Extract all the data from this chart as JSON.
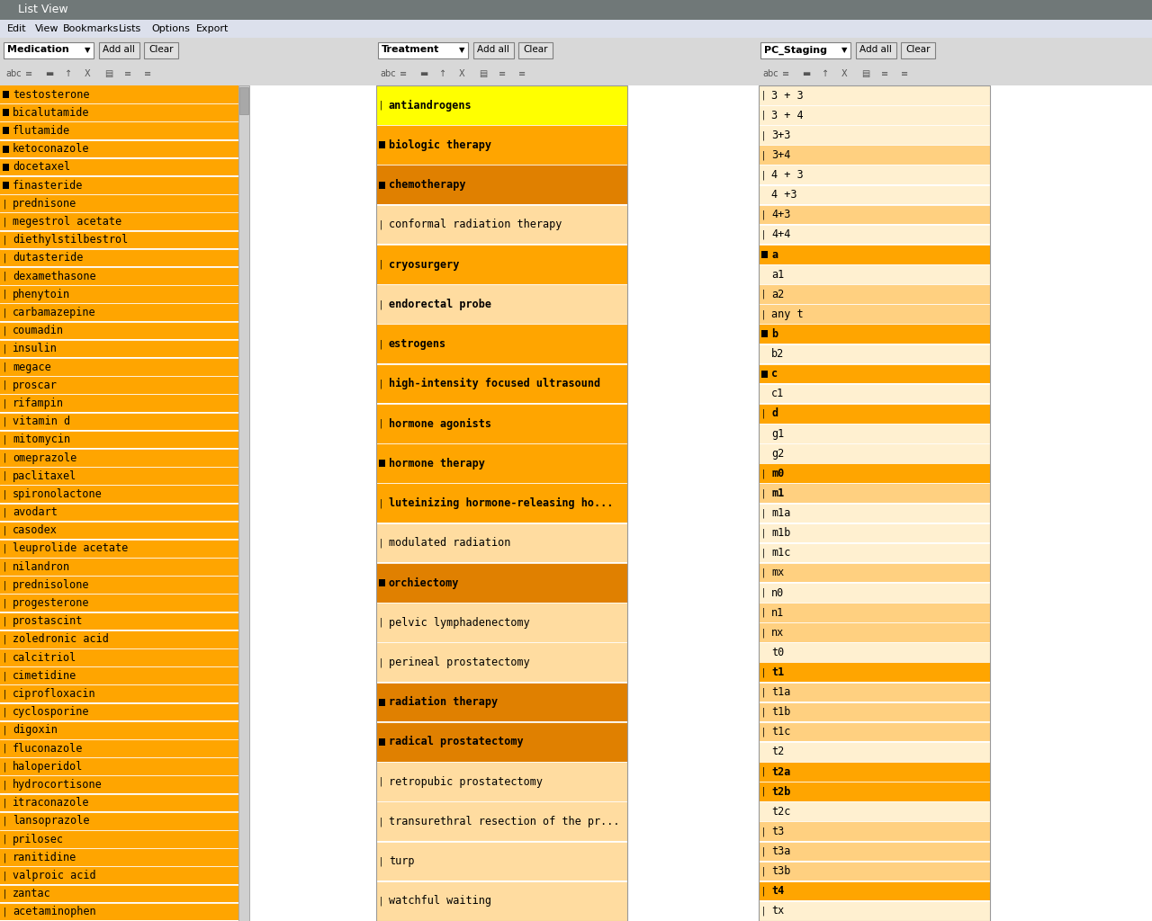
{
  "title": "List View",
  "menu_items": [
    "Edit",
    "View",
    "Bookmarks",
    "Lists",
    "Options",
    "Export"
  ],
  "col1_label": "Medication",
  "col2_label": "Treatment",
  "col3_label": "PC_Staging",
  "col1_items": [
    {
      "text": "testosterone",
      "marker": "square"
    },
    {
      "text": "bicalutamide",
      "marker": "square"
    },
    {
      "text": "flutamide",
      "marker": "square"
    },
    {
      "text": "ketoconazole",
      "marker": "square"
    },
    {
      "text": "docetaxel",
      "marker": "square"
    },
    {
      "text": "finasteride",
      "marker": "square"
    },
    {
      "text": "prednisone",
      "marker": "bar"
    },
    {
      "text": "megestrol acetate",
      "marker": "bar"
    },
    {
      "text": "diethylstilbestrol",
      "marker": "bar"
    },
    {
      "text": "dutasteride",
      "marker": "bar"
    },
    {
      "text": "dexamethasone",
      "marker": "bar"
    },
    {
      "text": "phenytoin",
      "marker": "bar"
    },
    {
      "text": "carbamazepine",
      "marker": "bar"
    },
    {
      "text": "coumadin",
      "marker": "bar"
    },
    {
      "text": "insulin",
      "marker": "bar"
    },
    {
      "text": "megace",
      "marker": "bar"
    },
    {
      "text": "proscar",
      "marker": "bar"
    },
    {
      "text": "rifampin",
      "marker": "bar"
    },
    {
      "text": "vitamin d",
      "marker": "bar"
    },
    {
      "text": "mitomycin",
      "marker": "bar"
    },
    {
      "text": "omeprazole",
      "marker": "bar"
    },
    {
      "text": "paclitaxel",
      "marker": "bar"
    },
    {
      "text": "spironolactone",
      "marker": "bar"
    },
    {
      "text": "avodart",
      "marker": "bar"
    },
    {
      "text": "casodex",
      "marker": "bar"
    },
    {
      "text": "leuprolide acetate",
      "marker": "bar"
    },
    {
      "text": "nilandron",
      "marker": "bar"
    },
    {
      "text": "prednisolone",
      "marker": "bar"
    },
    {
      "text": "progesterone",
      "marker": "bar"
    },
    {
      "text": "prostascint",
      "marker": "bar"
    },
    {
      "text": "zoledronic acid",
      "marker": "bar"
    },
    {
      "text": "calcitriol",
      "marker": "bar"
    },
    {
      "text": "cimetidine",
      "marker": "bar"
    },
    {
      "text": "ciprofloxacin",
      "marker": "bar"
    },
    {
      "text": "cyclosporine",
      "marker": "bar"
    },
    {
      "text": "digoxin",
      "marker": "bar"
    },
    {
      "text": "fluconazole",
      "marker": "bar"
    },
    {
      "text": "haloperidol",
      "marker": "bar"
    },
    {
      "text": "hydrocortisone",
      "marker": "bar"
    },
    {
      "text": "itraconazole",
      "marker": "bar"
    },
    {
      "text": "lansoprazole",
      "marker": "bar"
    },
    {
      "text": "prilosec",
      "marker": "bar"
    },
    {
      "text": "ranitidine",
      "marker": "bar"
    },
    {
      "text": "valproic acid",
      "marker": "bar"
    },
    {
      "text": "zantac",
      "marker": "bar"
    },
    {
      "text": "acetaminophen",
      "marker": "bar"
    }
  ],
  "col2_items": [
    {
      "text": "antiandrogens",
      "bold": true,
      "marker": "bar",
      "bg": "#ffff00"
    },
    {
      "text": "biologic therapy",
      "bold": true,
      "marker": "square",
      "bg": "#ffa500"
    },
    {
      "text": "chemotherapy",
      "bold": true,
      "marker": "square",
      "bg": "#e08000"
    },
    {
      "text": "conformal radiation therapy",
      "bold": false,
      "marker": "bar",
      "bg": "#ffdca0"
    },
    {
      "text": "cryosurgery",
      "bold": true,
      "marker": "bar",
      "bg": "#ffa500"
    },
    {
      "text": "endorectal probe",
      "bold": true,
      "marker": "bar",
      "bg": "#ffdca0"
    },
    {
      "text": "estrogens",
      "bold": true,
      "marker": "bar",
      "bg": "#ffa500"
    },
    {
      "text": "high-intensity focused ultrasound",
      "bold": true,
      "marker": "bar",
      "bg": "#ffa500"
    },
    {
      "text": "hormone agonists",
      "bold": true,
      "marker": "bar",
      "bg": "#ffa500"
    },
    {
      "text": "hormone therapy",
      "bold": true,
      "marker": "square",
      "bg": "#ffa500"
    },
    {
      "text": "luteinizing hormone-releasing ho...",
      "bold": true,
      "marker": "bar",
      "bg": "#ffa500"
    },
    {
      "text": "modulated radiation",
      "bold": false,
      "marker": "bar",
      "bg": "#ffdca0"
    },
    {
      "text": "orchiectomy",
      "bold": true,
      "marker": "square",
      "bg": "#e08000"
    },
    {
      "text": "pelvic lymphadenectomy",
      "bold": false,
      "marker": "bar",
      "bg": "#ffdca0"
    },
    {
      "text": "perineal prostatectomy",
      "bold": false,
      "marker": "bar",
      "bg": "#ffdca0"
    },
    {
      "text": "radiation therapy",
      "bold": true,
      "marker": "square",
      "bg": "#e08000"
    },
    {
      "text": "radical prostatectomy",
      "bold": true,
      "marker": "square",
      "bg": "#e08000"
    },
    {
      "text": "retropubic prostatectomy",
      "bold": false,
      "marker": "bar",
      "bg": "#ffdca0"
    },
    {
      "text": "transurethral resection of the pr...",
      "bold": false,
      "marker": "bar",
      "bg": "#ffdca0"
    },
    {
      "text": "turp",
      "bold": false,
      "marker": "bar",
      "bg": "#ffdca0"
    },
    {
      "text": "watchful waiting",
      "bold": false,
      "marker": "bar",
      "bg": "#ffdca0"
    }
  ],
  "col3_items": [
    {
      "text": "3 + 3",
      "bold": false,
      "marker": "bar",
      "bg": "#fff0d0"
    },
    {
      "text": "3 + 4",
      "bold": false,
      "marker": "bar",
      "bg": "#fff0d0"
    },
    {
      "text": "3+3",
      "bold": false,
      "marker": "bar",
      "bg": "#fff0d0"
    },
    {
      "text": "3+4",
      "bold": false,
      "marker": "bar",
      "bg": "#ffd080"
    },
    {
      "text": "4 + 3",
      "bold": false,
      "marker": "bar",
      "bg": "#fff0d0"
    },
    {
      "text": "4 +3",
      "bold": false,
      "marker": "none",
      "bg": "#fff0d0"
    },
    {
      "text": "4+3",
      "bold": false,
      "marker": "bar",
      "bg": "#ffd080"
    },
    {
      "text": "4+4",
      "bold": false,
      "marker": "bar",
      "bg": "#fff0d0"
    },
    {
      "text": "a",
      "bold": true,
      "marker": "square",
      "bg": "#ffa500"
    },
    {
      "text": "a1",
      "bold": false,
      "marker": "none",
      "bg": "#fff0d0"
    },
    {
      "text": "a2",
      "bold": false,
      "marker": "bar",
      "bg": "#ffd080"
    },
    {
      "text": "any t",
      "bold": false,
      "marker": "bar",
      "bg": "#ffd080"
    },
    {
      "text": "b",
      "bold": true,
      "marker": "square",
      "bg": "#ffa500"
    },
    {
      "text": "b2",
      "bold": false,
      "marker": "none",
      "bg": "#fff0d0"
    },
    {
      "text": "c",
      "bold": true,
      "marker": "square",
      "bg": "#ffa500"
    },
    {
      "text": "c1",
      "bold": false,
      "marker": "none",
      "bg": "#fff0d0"
    },
    {
      "text": "d",
      "bold": true,
      "marker": "bar",
      "bg": "#ffa500"
    },
    {
      "text": "g1",
      "bold": false,
      "marker": "none",
      "bg": "#fff0d0"
    },
    {
      "text": "g2",
      "bold": false,
      "marker": "none",
      "bg": "#fff0d0"
    },
    {
      "text": "m0",
      "bold": true,
      "marker": "bar",
      "bg": "#ffa500"
    },
    {
      "text": "m1",
      "bold": true,
      "marker": "bar",
      "bg": "#ffd080"
    },
    {
      "text": "m1a",
      "bold": false,
      "marker": "bar",
      "bg": "#fff0d0"
    },
    {
      "text": "m1b",
      "bold": false,
      "marker": "bar",
      "bg": "#fff0d0"
    },
    {
      "text": "m1c",
      "bold": false,
      "marker": "bar",
      "bg": "#fff0d0"
    },
    {
      "text": "mx",
      "bold": false,
      "marker": "bar",
      "bg": "#ffd080"
    },
    {
      "text": "n0",
      "bold": false,
      "marker": "bar",
      "bg": "#fff0d0"
    },
    {
      "text": "n1",
      "bold": false,
      "marker": "bar",
      "bg": "#ffd080"
    },
    {
      "text": "nx",
      "bold": false,
      "marker": "bar",
      "bg": "#ffd080"
    },
    {
      "text": "t0",
      "bold": false,
      "marker": "none",
      "bg": "#fff0d0"
    },
    {
      "text": "t1",
      "bold": true,
      "marker": "bar",
      "bg": "#ffa500"
    },
    {
      "text": "t1a",
      "bold": false,
      "marker": "bar",
      "bg": "#ffd080"
    },
    {
      "text": "t1b",
      "bold": false,
      "marker": "bar",
      "bg": "#ffd080"
    },
    {
      "text": "t1c",
      "bold": false,
      "marker": "bar",
      "bg": "#ffd080"
    },
    {
      "text": "t2",
      "bold": false,
      "marker": "none",
      "bg": "#fff0d0"
    },
    {
      "text": "t2a",
      "bold": true,
      "marker": "bar",
      "bg": "#ffa500"
    },
    {
      "text": "t2b",
      "bold": true,
      "marker": "bar",
      "bg": "#ffa500"
    },
    {
      "text": "t2c",
      "bold": false,
      "marker": "none",
      "bg": "#fff0d0"
    },
    {
      "text": "t3",
      "bold": false,
      "marker": "bar",
      "bg": "#ffd080"
    },
    {
      "text": "t3a",
      "bold": false,
      "marker": "bar",
      "bg": "#ffd080"
    },
    {
      "text": "t3b",
      "bold": false,
      "marker": "bar",
      "bg": "#ffd080"
    },
    {
      "text": "t4",
      "bold": true,
      "marker": "bar",
      "bg": "#ffa500"
    },
    {
      "text": "tx",
      "bold": false,
      "marker": "bar",
      "bg": "#fff0d0"
    }
  ],
  "col1_orange": "#ffa500",
  "bg_between": "#ffffff",
  "bg_main": "#f0f0f0",
  "title_bar_color": "#707878",
  "menu_bar_color": "#dce0ec",
  "toolbar_bar_color": "#d8d8d8",
  "scrollbar_color": "#d0d0d0"
}
